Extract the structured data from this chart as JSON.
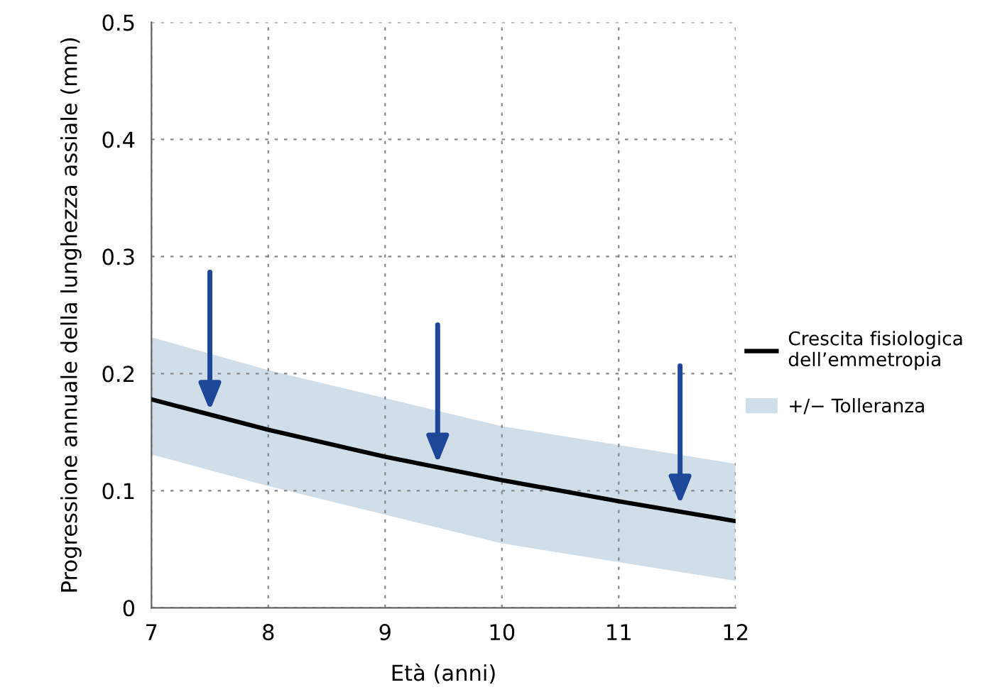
{
  "chart_data": {
    "type": "line",
    "xlabel": "Età (anni)",
    "ylabel": "Progressione annuale della lunghezza assiale (mm)",
    "xlim": [
      7,
      12
    ],
    "xticks": [
      7,
      8,
      9,
      10,
      11,
      12
    ],
    "ylim": [
      0,
      0.5
    ],
    "yticks": [
      0,
      0.1,
      0.2,
      0.3,
      0.4,
      0.5
    ],
    "grid": true,
    "legend": "right",
    "series": [
      {
        "name": "Crescita fisiologica dell’emmetropia",
        "color": "#000000",
        "x": [
          7,
          8,
          9,
          10,
          11,
          12
        ],
        "values": [
          0.178,
          0.152,
          0.129,
          0.109,
          0.091,
          0.074
        ]
      },
      {
        "name": "+/− Tolleranza",
        "type": "area",
        "color": "#d0deea",
        "x": [
          7,
          8,
          10,
          12
        ],
        "values": [
          null,
          null,
          null,
          null
        ],
        "lower": [
          0.131,
          0.104,
          0.055,
          0.023
        ],
        "upper": [
          0.231,
          0.203,
          0.155,
          0.123
        ]
      }
    ]
  }
}
